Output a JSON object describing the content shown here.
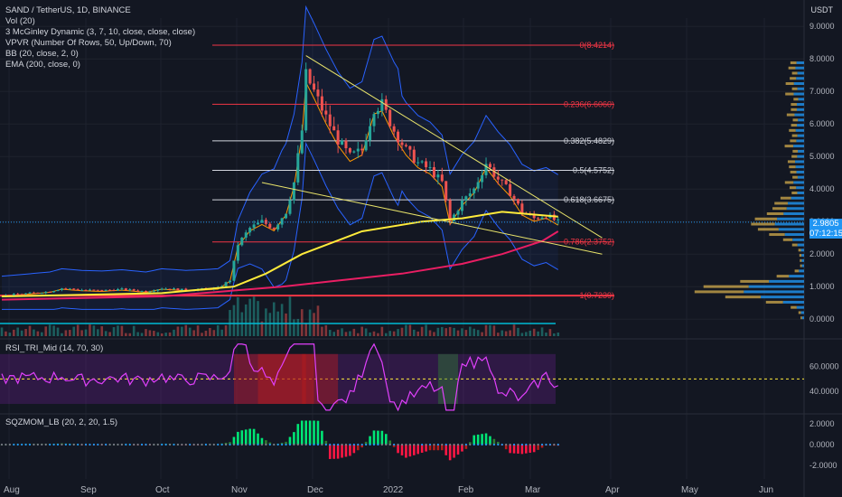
{
  "header": {
    "symbol": "SAND / TetherUS, 1D, BINANCE",
    "indicators": [
      "Vol (20)",
      "3 McGinley Dynamic (3, 7, 10, close, close, close)",
      "VPVR (Number Of Rows, 50, Up/Down, 70)",
      "BB (20, close, 2, 0)",
      "EMA (200, close, 0)"
    ],
    "currency": "USDT"
  },
  "rsi_label": "RSI_TRI_Mid (14, 70, 30)",
  "sqz_label": "SQZMOM_LB (20, 2, 20, 1.5)",
  "last_price": {
    "value": "2.9805",
    "countdown": "07:12:15"
  },
  "chart_data": [
    {
      "type": "candlestick",
      "x_ticks": [
        "Aug",
        "Sep",
        "Oct",
        "Nov",
        "Dec",
        "2022",
        "Feb",
        "Mar",
        "Apr",
        "May",
        "Jun"
      ],
      "y_ticks": [
        "9.0000",
        "8.0000",
        "7.0000",
        "6.0000",
        "5.0000",
        "4.0000",
        "3.0000",
        "2.0000",
        "1.0000",
        "0.0000"
      ],
      "ylim": [
        -0.3,
        9.2
      ],
      "close_path": [
        [
          0,
          0.72
        ],
        [
          12,
          0.85
        ],
        [
          15,
          0.95
        ],
        [
          20,
          0.9
        ],
        [
          25,
          0.88
        ],
        [
          30,
          0.92
        ],
        [
          36,
          0.85
        ],
        [
          40,
          0.95
        ],
        [
          46,
          0.9
        ],
        [
          50,
          0.92
        ],
        [
          54,
          0.95
        ],
        [
          57,
          1.2
        ],
        [
          59,
          2.3
        ],
        [
          62,
          2.8
        ],
        [
          65,
          3.0
        ],
        [
          68,
          2.8
        ],
        [
          71,
          3.3
        ],
        [
          73,
          4.2
        ],
        [
          75,
          5.8
        ],
        [
          76,
          7.5
        ],
        [
          78,
          7.0
        ],
        [
          81,
          6.2
        ],
        [
          84,
          5.5
        ],
        [
          87,
          5.0
        ],
        [
          90,
          5.2
        ],
        [
          93,
          6.5
        ],
        [
          95,
          6.6
        ],
        [
          98,
          5.8
        ],
        [
          101,
          5.2
        ],
        [
          104,
          4.8
        ],
        [
          107,
          4.6
        ],
        [
          110,
          4.2
        ],
        [
          112,
          3.0
        ],
        [
          115,
          3.6
        ],
        [
          118,
          4.0
        ],
        [
          121,
          4.8
        ],
        [
          124,
          4.3
        ],
        [
          127,
          3.9
        ],
        [
          130,
          3.3
        ],
        [
          133,
          3.1
        ],
        [
          136,
          3.2
        ],
        [
          139,
          2.98
        ]
      ],
      "ema200_path": [
        [
          0,
          0.6
        ],
        [
          40,
          0.7
        ],
        [
          70,
          1.0
        ],
        [
          85,
          1.2
        ],
        [
          100,
          1.4
        ],
        [
          115,
          1.7
        ],
        [
          125,
          2.0
        ],
        [
          135,
          2.4
        ],
        [
          139,
          2.7
        ]
      ],
      "mcginley_path": [
        [
          0,
          0.7
        ],
        [
          40,
          0.8
        ],
        [
          58,
          1.0
        ],
        [
          66,
          1.4
        ],
        [
          75,
          2.0
        ],
        [
          90,
          2.7
        ],
        [
          105,
          3.0
        ],
        [
          115,
          3.1
        ],
        [
          125,
          3.3
        ],
        [
          139,
          3.15
        ]
      ],
      "fib_levels": [
        {
          "label": "0(8.4214)",
          "value": 8.4214,
          "color": "#f23645"
        },
        {
          "label": "0.236(6.6060)",
          "value": 6.606,
          "color": "#f23645"
        },
        {
          "label": "0.382(5.4829)",
          "value": 5.4829,
          "color": "#d1d4dc"
        },
        {
          "label": "0.5(4.5752)",
          "value": 4.5752,
          "color": "#d1d4dc"
        },
        {
          "label": "0.618(3.6675)",
          "value": 3.6675,
          "color": "#d1d4dc"
        },
        {
          "label": "0.786(2.3752)",
          "value": 2.3752,
          "color": "#f23645"
        },
        {
          "label": "1(0.7239)",
          "value": 0.7239,
          "color": "#f23645"
        }
      ],
      "trendlines": [
        {
          "from": [
            76,
            8.1
          ],
          "to": [
            150,
            2.5
          ]
        },
        {
          "from": [
            65,
            4.2
          ],
          "to": [
            150,
            2.0
          ]
        }
      ],
      "last_price": 2.9805
    },
    {
      "type": "line",
      "name": "RSI_TRI_Mid (14, 70, 30)",
      "y_ticks": [
        "60.0000",
        "40.0000"
      ],
      "ylim": [
        22,
        80
      ],
      "guide_lines": [
        70,
        50,
        30
      ]
    },
    {
      "type": "bar",
      "name": "SQZMOM_LB (20, 2, 20, 1.5)",
      "y_ticks": [
        "2.0000",
        "0.0000",
        "-2.0000"
      ],
      "ylim": [
        -2.6,
        2.6
      ]
    }
  ],
  "colors": {
    "background": "#131722",
    "up": "#26a69a",
    "down": "#ef5350",
    "ema": "#e91e63",
    "mcginley": "#ffeb3b",
    "bb_band": "#2962ff",
    "bb_basis": "#ff9800",
    "rsi": "#e040fb",
    "rsi_band": "#7b1fa2",
    "vpvr_up": "#2196f3",
    "vpvr_down": "#c7a34a",
    "accent": "#2196f3"
  }
}
